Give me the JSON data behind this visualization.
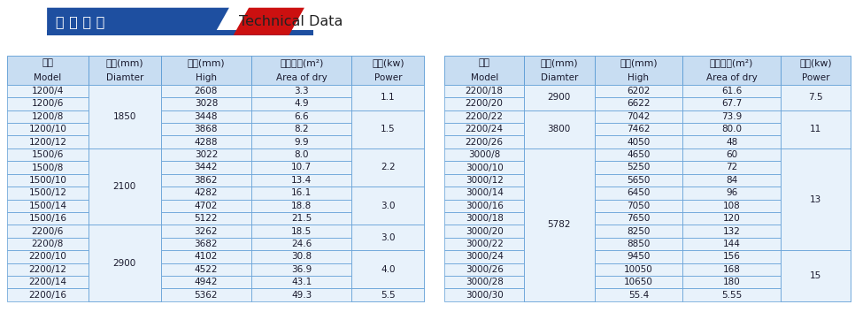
{
  "title_chinese": "技 术 参 数",
  "title_english": "Technical Data",
  "title_bg_color": "#1e4fa0",
  "title_red_color": "#cc1010",
  "header_bg_color": "#c8ddf2",
  "data_bg_color": "#e8f2fb",
  "border_color": "#5b9bd5",
  "font_color": "#1a1a2e",
  "bg_color": "#ffffff",
  "left_headers_cn": [
    "规格",
    "外径(mm)",
    "高度(mm)",
    "干燥面积(m²)",
    "功率(kw)"
  ],
  "left_headers_en": [
    "Model",
    "Diamter",
    "High",
    "Area of dry",
    "Power"
  ],
  "right_headers_cn": [
    "规格",
    "外径(mm)",
    "高度(mm)",
    "干燥面积(m²)",
    "功率(kw)"
  ],
  "right_headers_en": [
    "Model",
    "Diamter",
    "High",
    "Area of dry",
    "Power"
  ],
  "left_col1": [
    "1200/4",
    "1200/6",
    "1200/8",
    "1200/10",
    "1200/12",
    "1500/6",
    "1500/8",
    "1500/10",
    "1500/12",
    "1500/14",
    "1500/16",
    "2200/6",
    "2200/8",
    "2200/10",
    "2200/12",
    "2200/14",
    "2200/16"
  ],
  "left_col3": [
    "2608",
    "3028",
    "3448",
    "3868",
    "4288",
    "3022",
    "3442",
    "3862",
    "4282",
    "4702",
    "5122",
    "3262",
    "3682",
    "4102",
    "4522",
    "4942",
    "5362"
  ],
  "left_col4": [
    "3.3",
    "4.9",
    "6.6",
    "8.2",
    "9.9",
    "8.0",
    "10.7",
    "13.4",
    "16.1",
    "18.8",
    "21.5",
    "18.5",
    "24.6",
    "30.8",
    "36.9",
    "43.1",
    "49.3"
  ],
  "left_diam_merges": [
    [
      0,
      4,
      "1850"
    ],
    [
      5,
      10,
      "2100"
    ],
    [
      11,
      16,
      "2900"
    ]
  ],
  "left_power_merges": [
    [
      0,
      1,
      "1.1"
    ],
    [
      2,
      4,
      "1.5"
    ],
    [
      5,
      7,
      "2.2"
    ],
    [
      8,
      10,
      "3.0"
    ],
    [
      11,
      12,
      "3.0"
    ],
    [
      13,
      15,
      "4.0"
    ],
    [
      16,
      16,
      "5.5"
    ]
  ],
  "right_col1": [
    "2200/18",
    "2200/20",
    "2200/22",
    "2200/24",
    "2200/26",
    "3000/8",
    "3000/10",
    "3000/12",
    "3000/14",
    "3000/16",
    "3000/18",
    "3000/20",
    "3000/22",
    "3000/24",
    "3000/26",
    "3000/28",
    "3000/30"
  ],
  "right_col3": [
    "6202",
    "6622",
    "7042",
    "7462",
    "4050",
    "4650",
    "5250",
    "5650",
    "6450",
    "7050",
    "7650",
    "8250",
    "8850",
    "9450",
    "10050",
    "10650",
    "55.4"
  ],
  "right_col4": [
    "61.6",
    "67.7",
    "73.9",
    "80.0",
    "48",
    "60",
    "72",
    "84",
    "96",
    "108",
    "120",
    "132",
    "144",
    "156",
    "168",
    "180",
    "5.55"
  ],
  "right_diam_merges": [
    [
      0,
      1,
      "2900"
    ],
    [
      2,
      4,
      "3800"
    ],
    [
      5,
      16,
      "5782"
    ]
  ],
  "right_power_merges": [
    [
      0,
      1,
      "7.5"
    ],
    [
      2,
      4,
      "11"
    ],
    [
      5,
      12,
      "13"
    ],
    [
      13,
      16,
      "15"
    ]
  ]
}
